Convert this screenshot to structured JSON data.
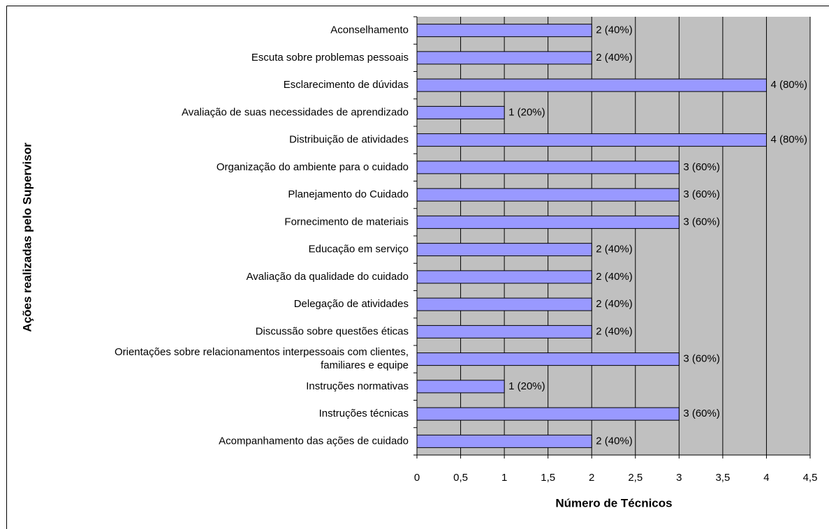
{
  "chart_data": {
    "type": "barh",
    "xlabel": "Número de Técnicos",
    "ylabel": "Ações realizadas pelo Supervisor",
    "categories": [
      "Aconselhamento",
      "Escuta sobre problemas pessoais",
      "Esclarecimento de dúvidas",
      "Avaliação de suas necessidades de aprendizado",
      "Distribuição de atividades",
      "Organização do ambiente para o cuidado",
      "Planejamento do Cuidado",
      "Fornecimento de materiais",
      "Educação em serviço",
      "Avaliação da qualidade do cuidado",
      "Delegação de atividades",
      "Discussão sobre questões éticas",
      "Orientações sobre relacionamentos interpessoais com clientes,\nfamiliares e equipe",
      "Instruções normativas",
      "Instruções técnicas",
      "Acompanhamento das ações de cuidado"
    ],
    "values": [
      2,
      2,
      4,
      1,
      4,
      3,
      3,
      3,
      2,
      2,
      2,
      2,
      3,
      1,
      3,
      2
    ],
    "value_labels": [
      "2 (40%)",
      "2 (40%)",
      "4 (80%)",
      "1 (20%)",
      "4 (80%)",
      "3 (60%)",
      "3 (60%)",
      "3 (60%)",
      "2 (40%)",
      "2 (40%)",
      "2 (40%)",
      "2 (40%)",
      "3 (60%)",
      "1 (20%)",
      "3 (60%)",
      "2 (40%)"
    ],
    "color": "#9999ff",
    "xlim": [
      0,
      4.5
    ],
    "xticks": [
      0,
      {
        "value": 0.5,
        "label": "0,5"
      },
      1,
      {
        "value": 1.5,
        "label": "1,5"
      },
      2,
      {
        "value": 2.5,
        "label": "2,5"
      },
      3,
      {
        "value": 3.5,
        "label": "3,5"
      },
      4,
      {
        "value": 4.5,
        "label": "4,5"
      }
    ],
    "grid": true
  }
}
